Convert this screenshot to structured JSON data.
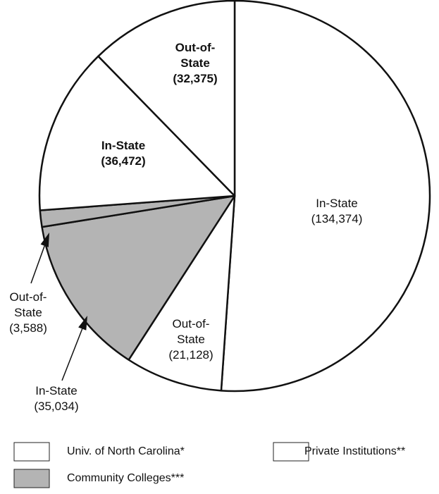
{
  "chart_data": {
    "type": "pie",
    "groups": [
      {
        "name": "Univ. of North Carolina*",
        "color": "#ffffff"
      },
      {
        "name": "Private Institutions**",
        "color": "#ffffff"
      },
      {
        "name": "Community Colleges***",
        "color": "#b4b4b4"
      }
    ],
    "slices": [
      {
        "name": "In-State",
        "group": 0,
        "value": 134374,
        "value_label": "(134,374)"
      },
      {
        "name": "Out-of-State",
        "group": 0,
        "value": 21128,
        "value_label": "(21,128)"
      },
      {
        "name": "In-State",
        "group": 2,
        "value": 35034,
        "value_label": "(35,034)"
      },
      {
        "name": "Out-of-State",
        "group": 2,
        "value": 3588,
        "value_label": "(3,588)"
      },
      {
        "name": "In-State",
        "group": 1,
        "value": 36472,
        "value_label": "(36,472)"
      },
      {
        "name": "Out-of-State",
        "group": 1,
        "value": 32375,
        "value_label": "(32,375)"
      }
    ]
  }
}
